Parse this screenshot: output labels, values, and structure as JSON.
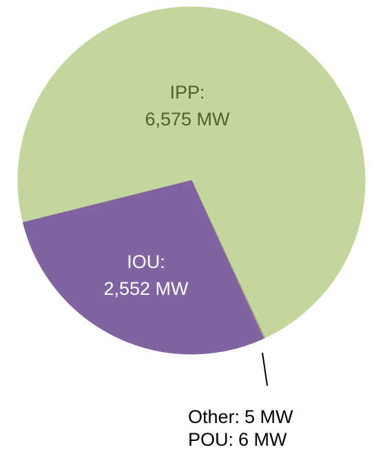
{
  "chart_data": {
    "type": "pie",
    "categories": [
      "IPP:",
      "Other:",
      "POU:",
      "IOU:"
    ],
    "values": [
      6575,
      5,
      6,
      2552
    ],
    "value_labels": [
      "6,575 MW",
      "5 MW",
      "6 MW",
      "2,552 MW"
    ],
    "colors": [
      "#c3d69b",
      "#4bacc6",
      "#f79646",
      "#8064a2"
    ]
  }
}
